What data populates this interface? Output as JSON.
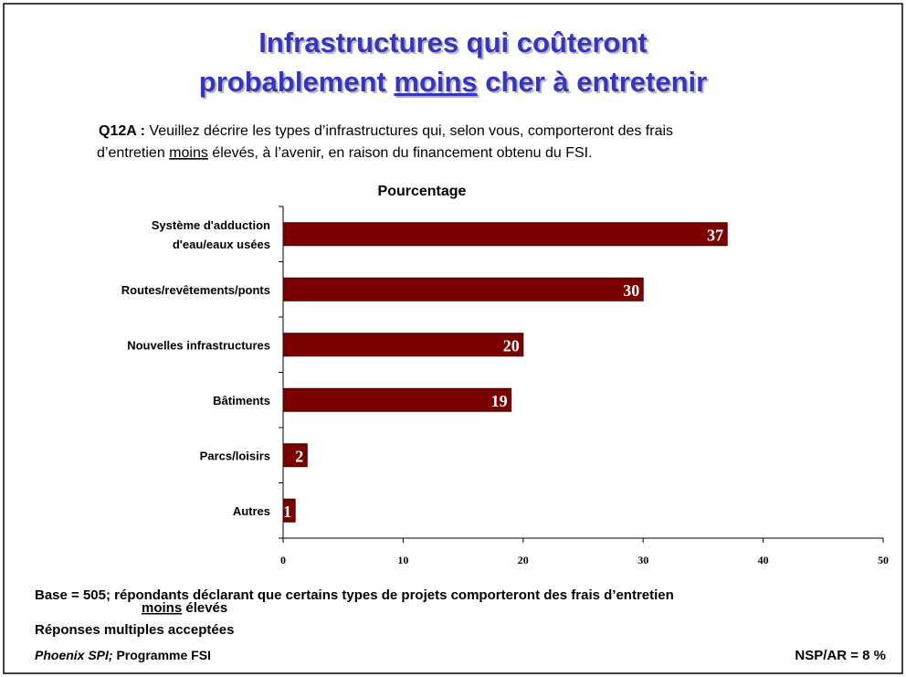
{
  "title": [
    [
      {
        "text": "Infrastructures qui coûteront"
      }
    ],
    [
      {
        "text": "probablement "
      },
      {
        "text": "moins",
        "underline": true
      },
      {
        "text": " cher à entretenir"
      }
    ]
  ],
  "question": [
    [
      {
        "text": "Q12A :",
        "bold": true
      },
      {
        "text": " Veuillez décrire les types d’infrastructures qui, selon vous, comporteront des frais"
      }
    ],
    [
      {
        "text": "d’entretien "
      },
      {
        "text": "moins",
        "underline": true
      },
      {
        "text": " élevés, à l’avenir, en raison du financement obtenu du FSI."
      }
    ]
  ],
  "chart_data": {
    "type": "bar",
    "orientation": "horizontal",
    "title": "Pourcentage",
    "categories": [
      [
        "Système d'adduction",
        "d'eau/eaux usées"
      ],
      [
        "Routes/revêtements/ponts"
      ],
      [
        "Nouvelles infrastructures"
      ],
      [
        "Bâtiments"
      ],
      [
        "Parcs/loisirs"
      ],
      [
        "Autres"
      ]
    ],
    "values": [
      37,
      30,
      20,
      19,
      2,
      1
    ],
    "color": "#7b0000",
    "xlim": [
      0,
      50
    ],
    "xticks": [
      0,
      10,
      20,
      30,
      40,
      50
    ]
  },
  "footer": {
    "base": [
      [
        {
          "text": "Base = 505; répondants déclarant que certains types de projets comporteront des frais d’entretien"
        }
      ],
      [
        {
          "text": "moins",
          "underline": true
        },
        {
          "text": " élevés"
        }
      ]
    ],
    "note": "Réponses multiples acceptées",
    "source": [
      {
        "text": "Phoenix SPI;",
        "italic": true
      },
      {
        "text": " Programme FSI"
      }
    ],
    "nsp": "NSP/AR = 8 %"
  }
}
